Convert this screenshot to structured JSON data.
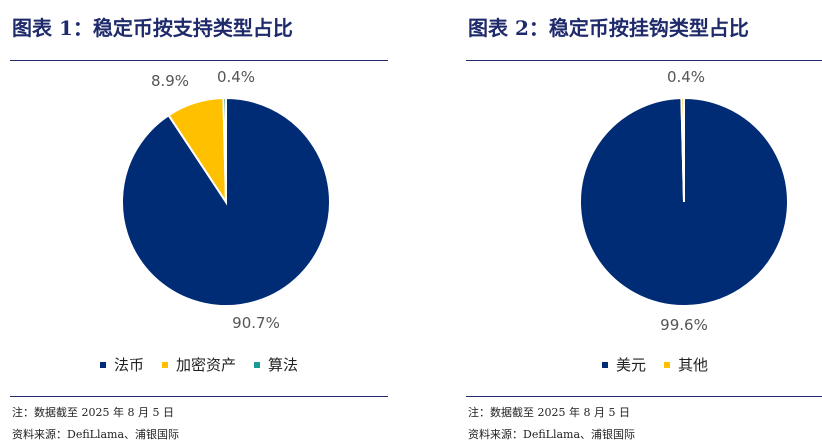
{
  "panels": [
    {
      "title": "图表 1：稳定币按支持类型占比",
      "note": "注：数据截至 2025 年 8 月 5 日",
      "source": "资料来源：DefiLlama、浦银国际"
    },
    {
      "title": "图表 2：稳定币按挂钩类型占比",
      "note": "注：数据截至 2025 年 8 月 5 日",
      "source": "资料来源：DefiLlama、浦银国际"
    }
  ],
  "chart_data": [
    {
      "type": "pie",
      "categories": [
        "法币",
        "加密资产",
        "算法"
      ],
      "values": [
        90.7,
        8.9,
        0.4
      ],
      "labels": [
        "90.7%",
        "8.9%",
        "0.4%"
      ],
      "colors": [
        "#002b75",
        "#ffc000",
        "#1a9b96"
      ],
      "legend_position": "bottom"
    },
    {
      "type": "pie",
      "categories": [
        "美元",
        "其他"
      ],
      "values": [
        99.6,
        0.4
      ],
      "labels": [
        "99.6%",
        "0.4%"
      ],
      "colors": [
        "#002b75",
        "#ffc000"
      ],
      "legend_position": "bottom"
    }
  ]
}
